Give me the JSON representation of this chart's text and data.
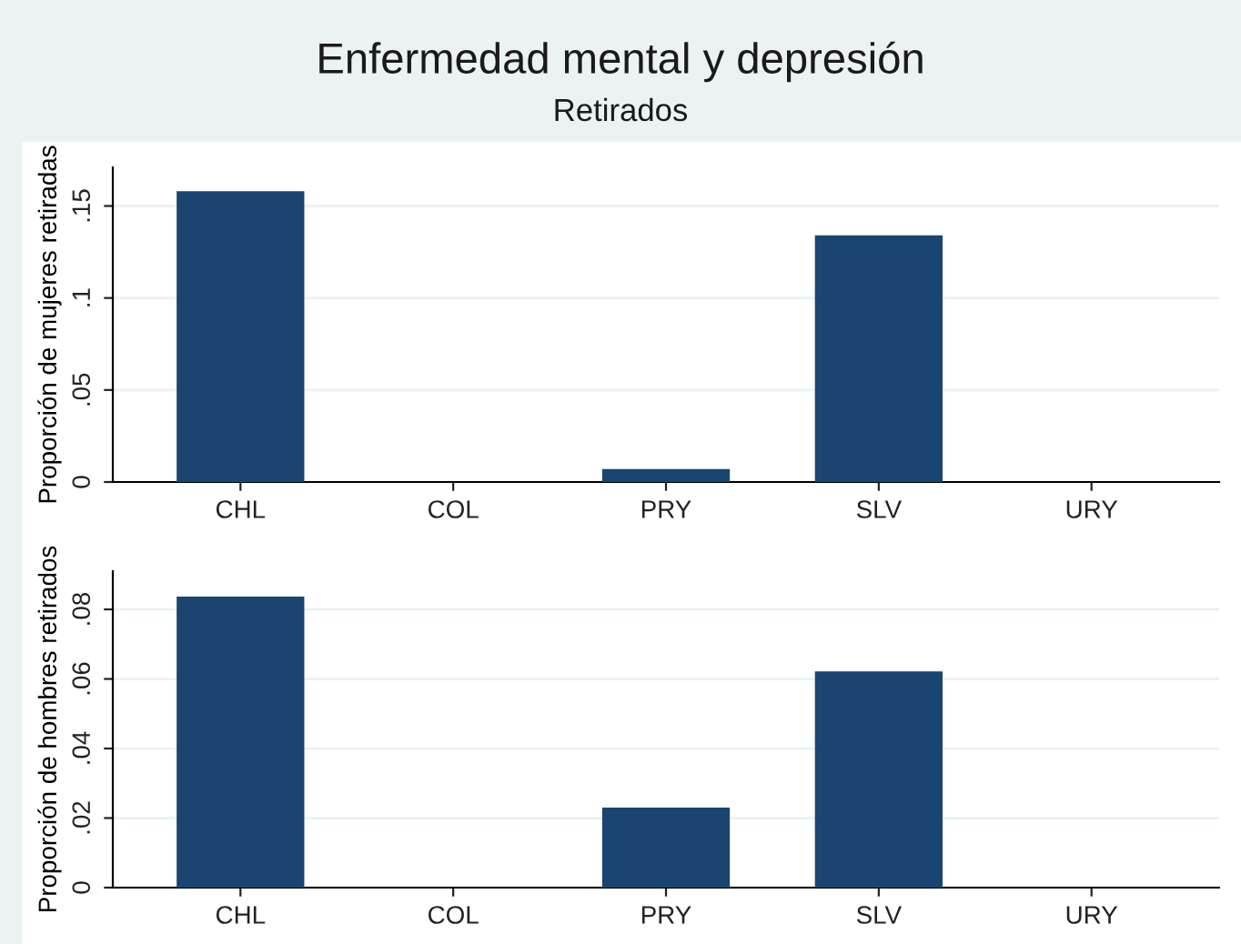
{
  "chart_data": [
    {
      "type": "bar",
      "title": "Enfermedad mental y depresión",
      "subtitle": "Retirados",
      "ylabel": "Proporción de mujeres retiradas",
      "categories": [
        "CHL",
        "COL",
        "PRY",
        "SLV",
        "URY"
      ],
      "values": [
        0.158,
        0,
        0.007,
        0.134,
        0
      ],
      "color": "#1a4570",
      "ylim": [
        0,
        0.171
      ],
      "yticks": [
        {
          "value": 0,
          "label": "0"
        },
        {
          "value": 0.05,
          "label": ".05"
        },
        {
          "value": 0.1,
          "label": ".1"
        },
        {
          "value": 0.15,
          "label": ".15"
        }
      ],
      "grid": "y"
    },
    {
      "type": "bar",
      "ylabel": "Proporción de hombres retirados",
      "categories": [
        "CHL",
        "COL",
        "PRY",
        "SLV",
        "URY"
      ],
      "values": [
        0.0837,
        0,
        0.023,
        0.0622,
        0
      ],
      "color": "#1a4570",
      "ylim": [
        0,
        0.091
      ],
      "yticks": [
        {
          "value": 0,
          "label": "0"
        },
        {
          "value": 0.02,
          "label": ".02"
        },
        {
          "value": 0.04,
          "label": ".04"
        },
        {
          "value": 0.06,
          "label": ".06"
        },
        {
          "value": 0.08,
          "label": ".08"
        }
      ],
      "grid": "y"
    }
  ]
}
